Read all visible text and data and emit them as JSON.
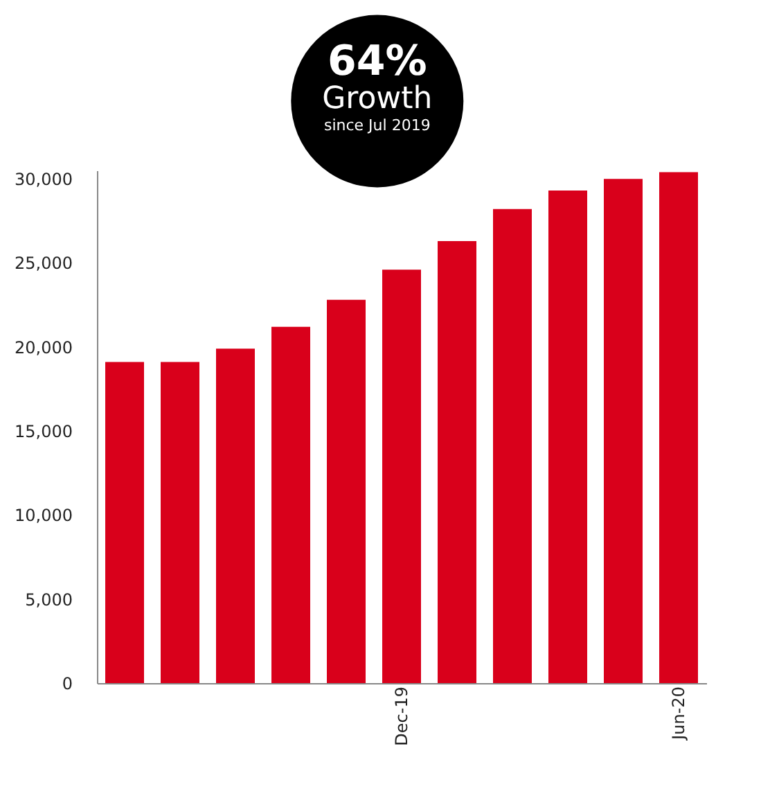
{
  "chart_data": {
    "type": "bar",
    "categories": [
      null,
      null,
      null,
      null,
      null,
      "Dec-19",
      null,
      null,
      null,
      null,
      "Jun-20"
    ],
    "values": [
      19100,
      19100,
      19900,
      21200,
      22800,
      24600,
      26300,
      28200,
      29300,
      30000,
      30400
    ],
    "color": "#d9001b",
    "ylim": [
      0,
      30500
    ],
    "yticks": [
      0,
      {
        "value": 5000,
        "label": "5,000"
      },
      {
        "value": 10000,
        "label": "10,000"
      },
      {
        "value": 15000,
        "label": "15,000"
      },
      {
        "value": 20000,
        "label": "20,000"
      },
      {
        "value": 25000,
        "label": "25,000"
      },
      {
        "value": 30000,
        "label": "30,000"
      }
    ],
    "grid": false,
    "annotations": [
      "64%",
      "Growth",
      "since Jul 2019"
    ]
  }
}
